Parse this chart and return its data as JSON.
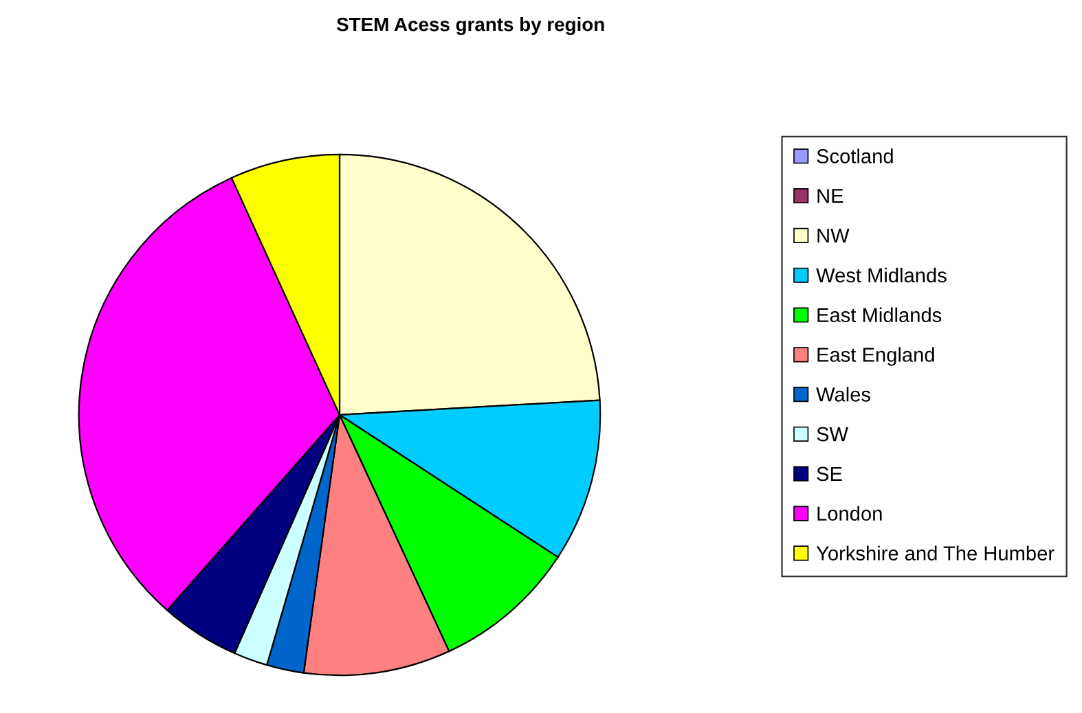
{
  "chart_data": {
    "type": "pie",
    "title": "STEM Acess grants by region",
    "categories": [
      "Scotland",
      "NE",
      "NW",
      "West Midlands",
      "East Midlands",
      "East England",
      "Wales",
      "SW",
      "SE",
      "London",
      "Yorkshire and The Humber"
    ],
    "values": [
      0,
      0,
      24.1,
      10.1,
      8.9,
      9.1,
      2.3,
      2.1,
      4.9,
      31.7,
      6.8
    ],
    "colors": [
      "#9999ff",
      "#993366",
      "#ffffcc",
      "#00ccff",
      "#00ff00",
      "#ff8080",
      "#0066cc",
      "#ccffff",
      "#000080",
      "#ff00ff",
      "#ffff00"
    ],
    "legend": "right"
  }
}
